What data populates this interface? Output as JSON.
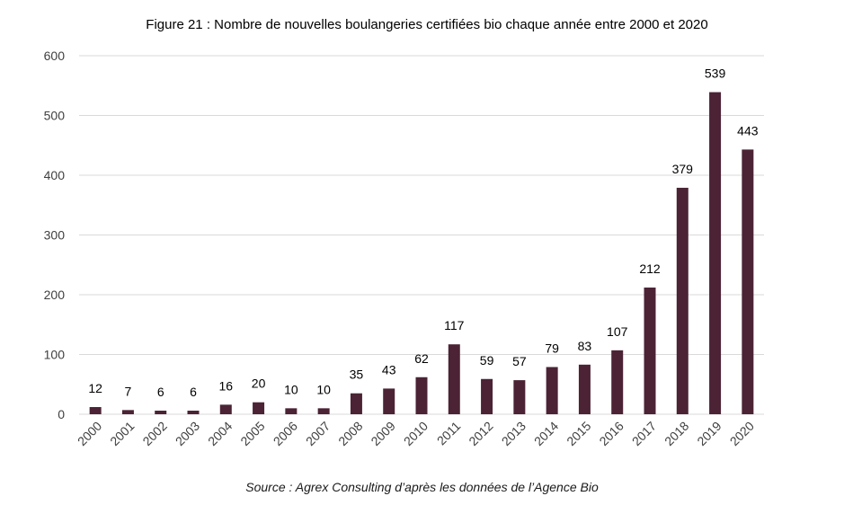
{
  "chart_data": {
    "type": "bar",
    "title": "Figure 21 : Nombre de nouvelles boulangeries certifiées bio chaque année entre 2000 et 2020",
    "xlabel": "",
    "ylabel": "",
    "categories": [
      "2000",
      "2001",
      "2002",
      "2003",
      "2004",
      "2005",
      "2006",
      "2007",
      "2008",
      "2009",
      "2010",
      "2011",
      "2012",
      "2013",
      "2014",
      "2015",
      "2016",
      "2017",
      "2018",
      "2019",
      "2020"
    ],
    "values": [
      12,
      7,
      6,
      6,
      16,
      20,
      10,
      10,
      35,
      43,
      62,
      117,
      59,
      57,
      79,
      83,
      107,
      212,
      379,
      539,
      443
    ],
    "ylim": [
      0,
      600
    ],
    "yticks": [
      0,
      100,
      200,
      300,
      400,
      500,
      600
    ],
    "grid": true,
    "legend": "none",
    "bar_color": "#4b2335",
    "data_labels": true
  },
  "source_note": "Source : Agrex Consulting d’après les données de l’Agence Bio"
}
